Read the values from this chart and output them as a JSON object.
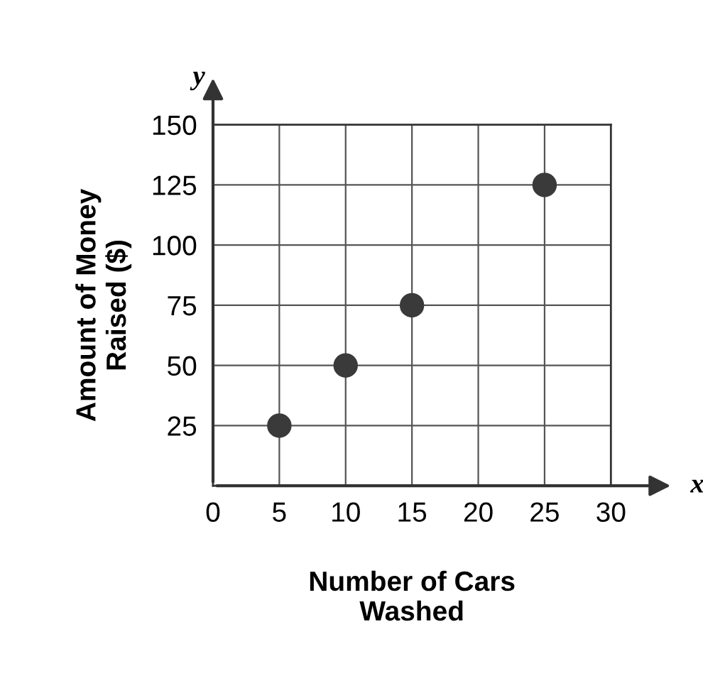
{
  "chart_data": {
    "type": "scatter",
    "xlabel": "Number of Cars\nWashed",
    "ylabel": "Amount of Money\nRaised ($)",
    "x": [
      5,
      10,
      15,
      25
    ],
    "series": [
      {
        "color": "#3a3a3a",
        "values": [
          25,
          50,
          75,
          125
        ]
      }
    ],
    "xlim": [
      0,
      30
    ],
    "ylim": [
      0,
      150
    ],
    "xticks": [
      0,
      5,
      10,
      15,
      20,
      25,
      30
    ],
    "yticks": [
      25,
      50,
      75,
      100,
      125,
      150
    ],
    "grid": true,
    "marker": "circle",
    "legend": false,
    "annotations": [
      "x",
      "y"
    ]
  }
}
